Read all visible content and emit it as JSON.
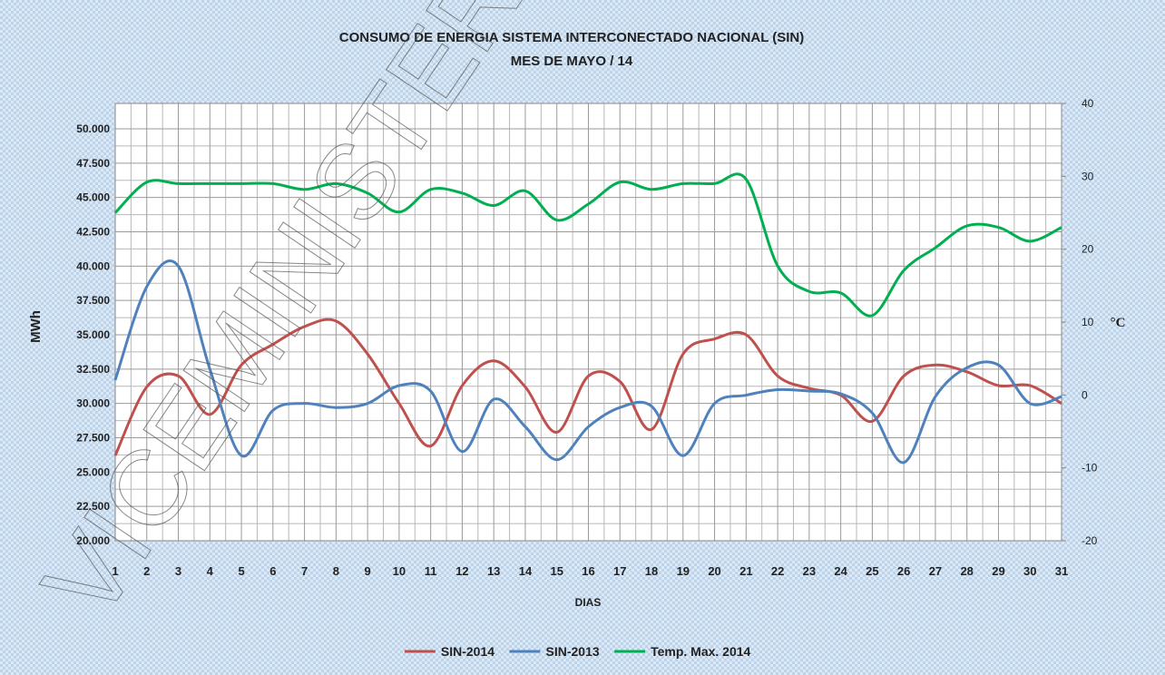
{
  "chart_data": {
    "type": "line",
    "title": "CONSUMO DE ENERGIA SISTEMA INTERCONECTADO NACIONAL (SIN)",
    "subtitle": "MES DE  MAYO / 14",
    "x_label": "DIAS",
    "y_label": "MWh",
    "y2_label": "°C",
    "watermark": "VICEMINISTERIO",
    "x": [
      1,
      2,
      3,
      4,
      5,
      6,
      7,
      8,
      9,
      10,
      11,
      12,
      13,
      14,
      15,
      16,
      17,
      18,
      19,
      20,
      21,
      22,
      23,
      24,
      25,
      26,
      27,
      28,
      29,
      30,
      31
    ],
    "xlim": [
      1,
      31
    ],
    "xticks": [
      1,
      2,
      3,
      4,
      5,
      6,
      7,
      8,
      9,
      10,
      11,
      12,
      13,
      14,
      15,
      16,
      17,
      18,
      19,
      20,
      21,
      22,
      23,
      24,
      25,
      26,
      27,
      28,
      29,
      30,
      31
    ],
    "ylim": [
      20000,
      51850
    ],
    "yticks": [
      {
        "value": 20000,
        "label": "20.000"
      },
      {
        "value": 22500,
        "label": "22.500"
      },
      {
        "value": 25000,
        "label": "25.000"
      },
      {
        "value": 27500,
        "label": "27.500"
      },
      {
        "value": 30000,
        "label": "30.000"
      },
      {
        "value": 32500,
        "label": "32.500"
      },
      {
        "value": 35000,
        "label": "35.000"
      },
      {
        "value": 37500,
        "label": "37.500"
      },
      {
        "value": 40000,
        "label": "40.000"
      },
      {
        "value": 42500,
        "label": "42.500"
      },
      {
        "value": 45000,
        "label": "45.000"
      },
      {
        "value": 47500,
        "label": "47.500"
      },
      {
        "value": 50000,
        "label": "50.000"
      }
    ],
    "y2lim": [
      -20,
      40
    ],
    "y2ticks": [
      -20,
      -10,
      0,
      10,
      20,
      30,
      40
    ],
    "grid": true,
    "legend": "bottom",
    "series": [
      {
        "name": "SIN-2014",
        "color": "#c0504d",
        "values": [
          26200,
          31200,
          32000,
          29200,
          32800,
          34300,
          35600,
          36000,
          33600,
          30000,
          26900,
          31300,
          33100,
          31200,
          27900,
          32000,
          31600,
          28100,
          33600,
          34700,
          35000,
          32000,
          31100,
          30600,
          28700,
          32000,
          32800,
          32300,
          31300,
          31300,
          30000
        ]
      },
      {
        "name": "SIN-2013",
        "color": "#4f81bd",
        "values": [
          31700,
          38500,
          40000,
          32500,
          26200,
          29500,
          30000,
          29700,
          30000,
          31300,
          30900,
          26500,
          30300,
          28300,
          25900,
          28300,
          29700,
          29800,
          26200,
          30000,
          30600,
          31000,
          30900,
          30700,
          29300,
          25700,
          30500,
          32600,
          32800,
          30000,
          30500
        ]
      },
      {
        "name": "Temp. Max. 2014",
        "color": "#00b050",
        "axis": "y2",
        "values": [
          25,
          29.2,
          29,
          29,
          29,
          29,
          28.2,
          29,
          27.7,
          25.1,
          28.2,
          27.7,
          26,
          28,
          24,
          26.2,
          29.2,
          28.2,
          29,
          29,
          29.6,
          17.7,
          14.2,
          14,
          10.9,
          17.1,
          20.2,
          23.2,
          23,
          21.1,
          23
        ]
      }
    ]
  }
}
